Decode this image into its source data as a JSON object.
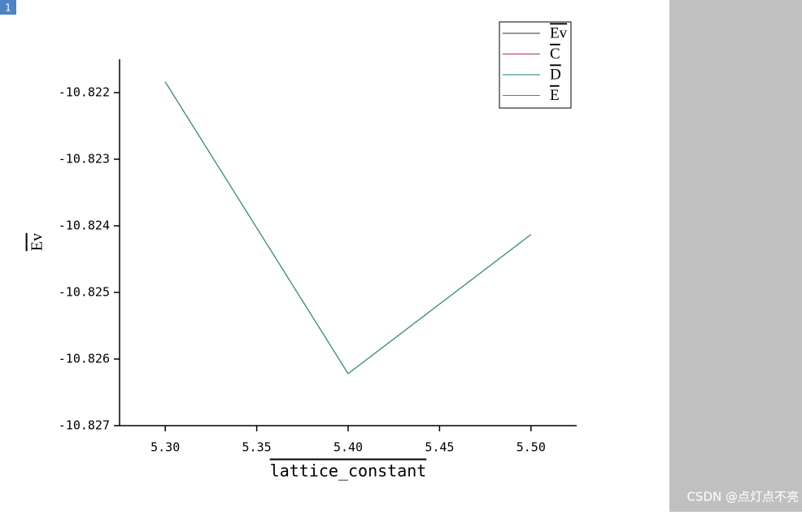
{
  "chart_data": {
    "type": "line",
    "badge": "1",
    "x_label": "lattice_constant",
    "y_label": "Ev",
    "x": [
      5.3,
      5.4,
      5.5
    ],
    "series": [
      {
        "name": "Ev",
        "color": "#333333",
        "values": [
          -10.82184,
          -10.82622,
          -10.82413
        ]
      },
      {
        "name": "C",
        "color": "#b0304a",
        "values": [
          -10.82184,
          -10.82622,
          -10.82413
        ]
      },
      {
        "name": "D",
        "color": "#1a7a7a",
        "values": [
          -10.82184,
          -10.82622,
          -10.82413
        ]
      },
      {
        "name": "E",
        "color": "#2e9e5a",
        "values": [
          -10.82184,
          -10.82622,
          -10.82413
        ]
      }
    ],
    "xlim": [
      5.275,
      5.525
    ],
    "ylim": [
      -10.827,
      -10.8215
    ],
    "xticks": [
      {
        "value": 5.3,
        "label": "5.30"
      },
      {
        "value": 5.35,
        "label": "5.35"
      },
      {
        "value": 5.4,
        "label": "5.40"
      },
      {
        "value": 5.45,
        "label": "5.45"
      },
      {
        "value": 5.5,
        "label": "5.50"
      }
    ],
    "yticks": [
      -10.822,
      -10.823,
      -10.824,
      -10.825,
      -10.826,
      -10.827
    ],
    "legend": "top-right",
    "watermark": "CSDN @点灯点不亮"
  }
}
